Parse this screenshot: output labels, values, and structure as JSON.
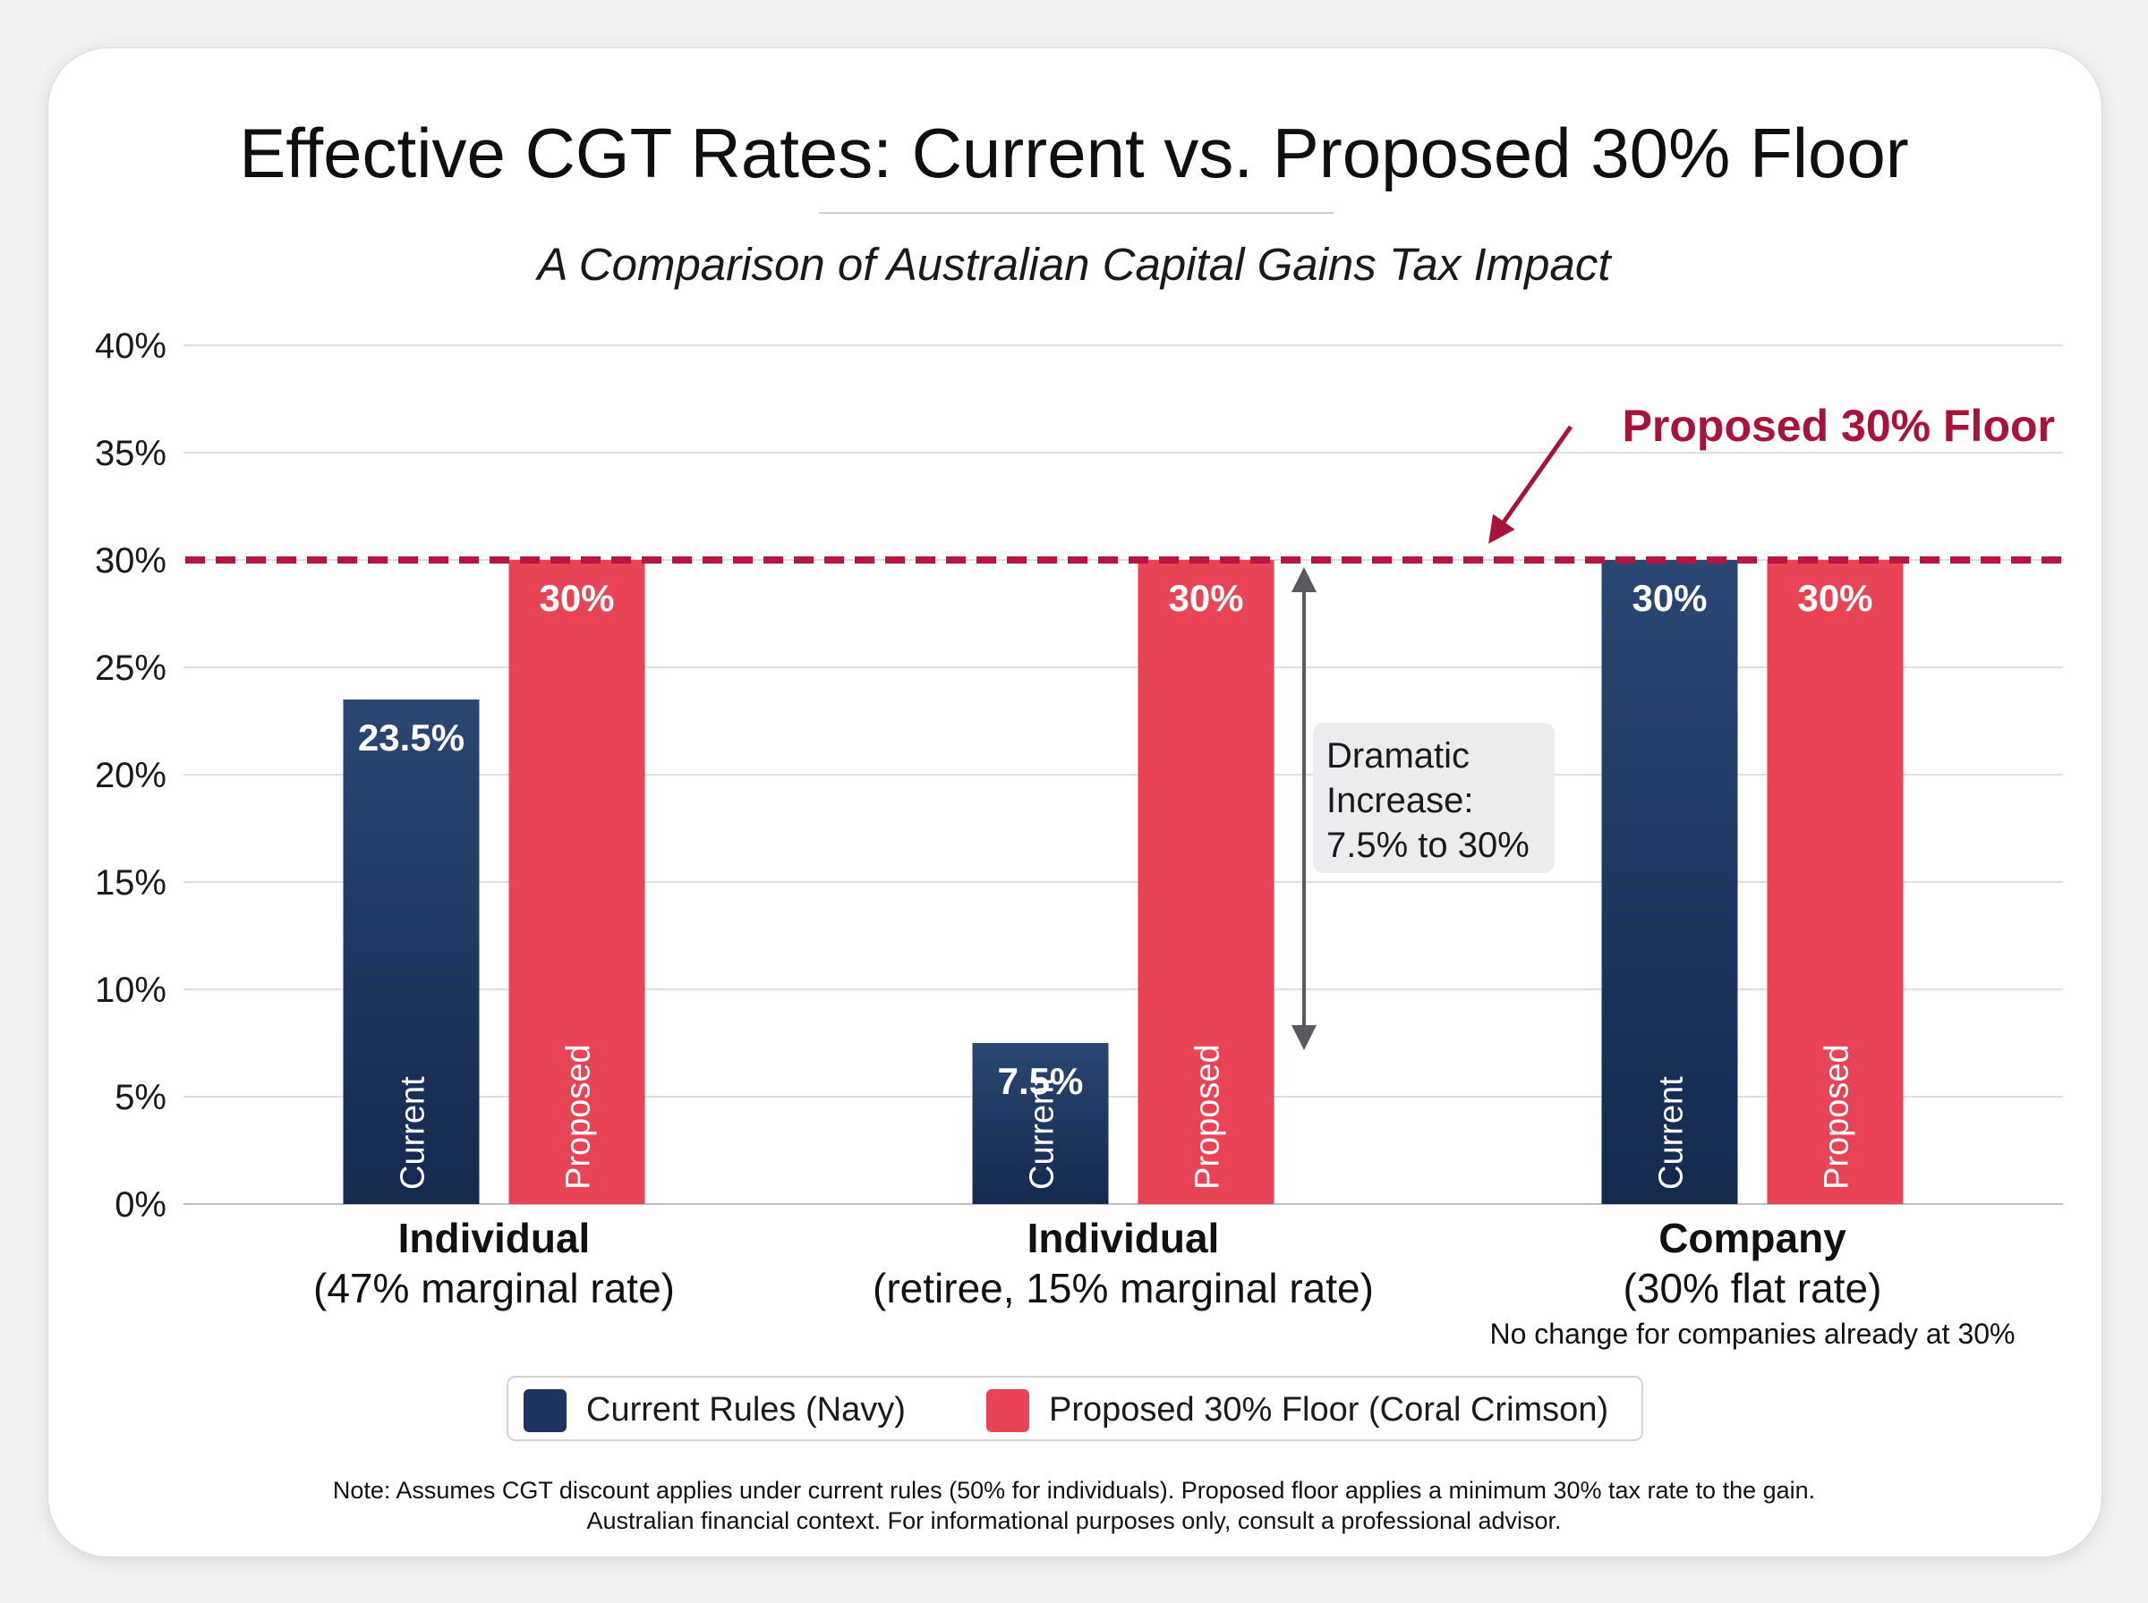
{
  "colors": {
    "navy": "#1d3560",
    "coral": "#e84455",
    "floor_line": "#b8163e",
    "floor_label": "#a8133c",
    "arrow_gray": "#5a5a5e",
    "callout_bg": "#ececee"
  },
  "header": {
    "title": "Effective CGT Rates: Current vs. Proposed 30% Floor",
    "subtitle": "A Comparison of Australian Capital Gains Tax Impact"
  },
  "chart_data": {
    "type": "bar",
    "ylim": [
      0,
      40
    ],
    "yticks": [
      0,
      5,
      10,
      15,
      20,
      25,
      30,
      35,
      40
    ],
    "ytick_labels": [
      "0%",
      "5%",
      "10%",
      "15%",
      "20%",
      "25%",
      "30%",
      "35%",
      "40%"
    ],
    "grid": true,
    "categories": [
      {
        "name": "Individual",
        "detail": "(47% marginal rate)",
        "note": ""
      },
      {
        "name": "Individual",
        "detail": "(retiree, 15% marginal rate)",
        "note": ""
      },
      {
        "name": "Company",
        "detail": "(30% flat rate)",
        "note": "No change for companies already at 30%"
      }
    ],
    "series": [
      {
        "name": "Current Rules (Navy)",
        "bar_label": "Current",
        "values": [
          23.5,
          7.5,
          30
        ],
        "value_labels": [
          "23.5%",
          "7.5%",
          "30%"
        ]
      },
      {
        "name": "Proposed 30% Floor (Coral Crimson)",
        "bar_label": "Proposed",
        "values": [
          30,
          30,
          30
        ],
        "value_labels": [
          "30%",
          "30%",
          "30%"
        ]
      }
    ],
    "reference_line": {
      "value": 30,
      "label": "Proposed 30% Floor"
    },
    "annotation": {
      "lines": [
        "Dramatic",
        "Increase:",
        "7.5% to 30%"
      ],
      "from": 7.5,
      "to": 30
    },
    "legend_position": "bottom"
  },
  "footnote": {
    "line1": "Note: Assumes CGT discount applies under current rules (50% for individuals). Proposed floor applies a minimum 30% tax rate to the gain.",
    "line2": "Australian financial context. For informational purposes only, consult a professional advisor."
  }
}
